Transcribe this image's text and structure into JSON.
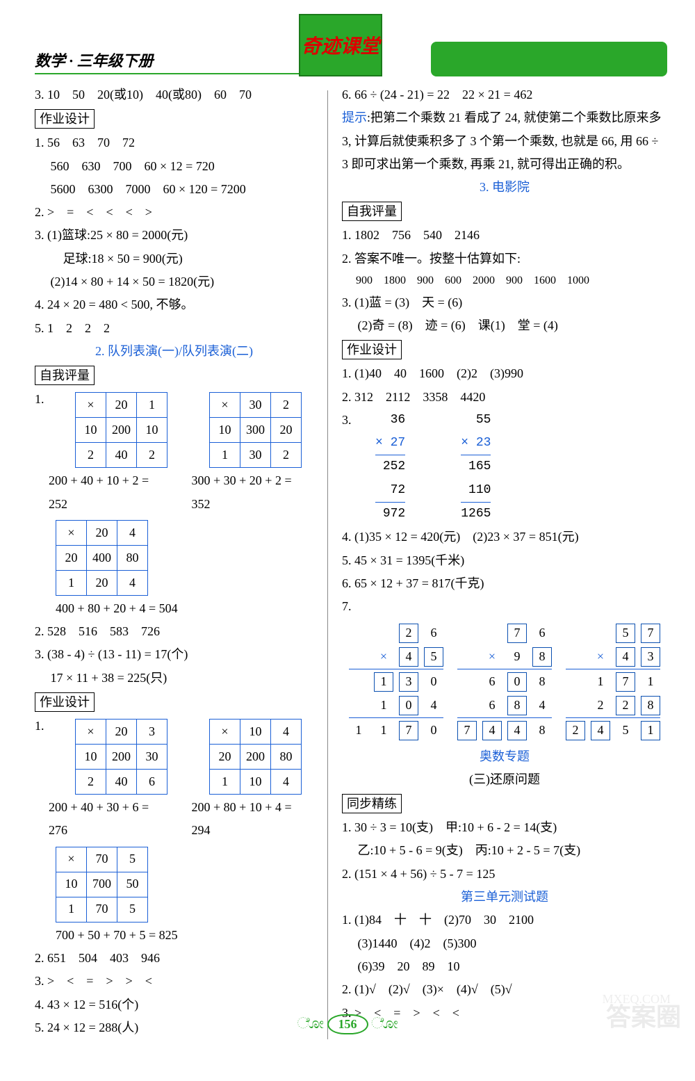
{
  "header": {
    "left": "数学 · 三年级下册",
    "center": "奇迹课堂"
  },
  "left": {
    "l3": "3. 10　50　20(或10)　40(或80)　60　70",
    "box1": "作业设计",
    "hw1a": "1. 56　63　70　72",
    "hw1b": "　 560　630　700　60 × 12 = 720",
    "hw1c": "　 5600　6300　7000　60 × 120 = 7200",
    "hw2": "2. >　=　<　<　<　>",
    "hw3a": "3. (1)篮球:25 × 80 = 2000(元)",
    "hw3b": "　　 足球:18 × 50 = 900(元)",
    "hw3c": "　 (2)14 × 80 + 14 × 50 = 1820(元)",
    "hw4": "4. 24 × 20 = 480 < 500, 不够。",
    "hw5": "5. 1　2　2　2",
    "sec2": "2. 队列表演(一)/队列表演(二)",
    "box2": "自我评量",
    "q1": "1.",
    "t1": [
      [
        "×",
        "20",
        "1"
      ],
      [
        "10",
        "200",
        "10"
      ],
      [
        "2",
        "40",
        "2"
      ]
    ],
    "t2": [
      [
        "×",
        "30",
        "2"
      ],
      [
        "10",
        "300",
        "20"
      ],
      [
        "1",
        "30",
        "2"
      ]
    ],
    "t1eq": "200 + 40 + 10 + 2 = 252",
    "t2eq": "300 + 30 + 20 + 2 = 352",
    "t3": [
      [
        "×",
        "20",
        "4"
      ],
      [
        "20",
        "400",
        "80"
      ],
      [
        "1",
        "20",
        "4"
      ]
    ],
    "t3eq": "400 + 80 + 20 + 4 = 504",
    "q2": "2. 528　516　583　726",
    "q3a": "3. (38 - 4) ÷ (13 - 11) = 17(个)",
    "q3b": "　 17 × 11 + 38 = 225(只)",
    "box3": "作业设计",
    "p1": "1.",
    "t4": [
      [
        "×",
        "20",
        "3"
      ],
      [
        "10",
        "200",
        "30"
      ],
      [
        "2",
        "40",
        "6"
      ]
    ],
    "t5": [
      [
        "×",
        "10",
        "4"
      ],
      [
        "20",
        "200",
        "80"
      ],
      [
        "1",
        "10",
        "4"
      ]
    ],
    "t4eq": "200 + 40 + 30 + 6 = 276",
    "t5eq": "200 + 80 + 10 + 4 = 294",
    "t6": [
      [
        "×",
        "70",
        "5"
      ],
      [
        "10",
        "700",
        "50"
      ],
      [
        "1",
        "70",
        "5"
      ]
    ],
    "t6eq": "700 + 50 + 70 + 5 = 825",
    "p2": "2. 651　504　403　946",
    "p3": "3. >　<　=　>　>　<",
    "p4": "4. 43 × 12 = 516(个)",
    "p5": "5. 24 × 12 = 288(人)"
  },
  "right": {
    "l6": "6. 66 ÷ (24 - 21) = 22　22 × 21 = 462",
    "hint_label": "提示",
    "hint": ":把第二个乘数 21 看成了 24, 就使第二个乘数比原来多 3, 计算后就使乘积多了 3 个第一个乘数, 也就是 66, 用 66 ÷ 3 即可求出第一个乘数, 再乘 21, 就可得出正确的积。",
    "sec3": "3. 电影院",
    "box4": "自我评量",
    "r1": "1. 1802　756　540　2146",
    "r2a": "2. 答案不唯一。按整十估算如下:",
    "r2b": "　 900　1800　900　600　2000　900　1600　1000",
    "r3a": "3. (1)蓝 = (3)　天 = (6)",
    "r3b": "　 (2)奇 = (8)　迹 = (6)　课(1)　堂 = (4)",
    "box5": "作业设计",
    "s1": "1. (1)40　40　1600　(2)2　(3)990",
    "s2": "2. 312　2112　3358　4420",
    "s3": "3.",
    "mult1": {
      "a": "36",
      "b": "× 27",
      "p1": "252",
      "p2": "72 ",
      "r": "972"
    },
    "mult2": {
      "a": "55",
      "b": "× 23",
      "p1": "165",
      "p2": "110 ",
      "r": "1265"
    },
    "s4": "4. (1)35 × 12 = 420(元)　(2)23 × 37 = 851(元)",
    "s5": "5. 45 × 31 = 1395(千米)",
    "s6": "6. 65 × 12 + 37 = 817(千克)",
    "s7": "7.",
    "puzzles": [
      {
        "rows": [
          [
            "",
            "2b",
            "6"
          ],
          [
            "×",
            "4b",
            "5b"
          ],
          [
            "1b",
            "3b",
            "0"
          ],
          [
            "1",
            "0b",
            "4"
          ],
          [
            "1",
            "1",
            "7b",
            "0"
          ]
        ]
      },
      {
        "rows": [
          [
            "",
            "7b",
            "6"
          ],
          [
            "×",
            "9",
            "8b"
          ],
          [
            "6",
            "0b",
            "8"
          ],
          [
            "6",
            "8b",
            "4"
          ],
          [
            "7b",
            "4b",
            "4b",
            "8"
          ]
        ]
      },
      {
        "rows": [
          [
            "",
            "5b",
            "7b"
          ],
          [
            "×",
            "4b",
            "3b"
          ],
          [
            "1",
            "7b",
            "1"
          ],
          [
            "2",
            "2b",
            "8b"
          ],
          [
            "2b",
            "4b",
            "5",
            "1b"
          ]
        ]
      }
    ],
    "olysec": "奥数专题",
    "olytitle": "(三)还原问题",
    "box6": "同步精练",
    "o1a": "1. 30 ÷ 3 = 10(支)　甲:10 + 6 - 2 = 14(支)",
    "o1b": "　 乙:10 + 5 - 6 = 9(支)　丙:10 + 2 - 5 = 7(支)",
    "o2": "2. (151 × 4 + 56) ÷ 5 - 7 = 125",
    "testsec": "第三单元测试题",
    "t1a": "1. (1)84　十　十　(2)70　30　2100",
    "t1b": "　 (3)1440　(4)2　(5)300",
    "t1c": "　 (6)39　20　89　10",
    "t2": "2. (1)√　(2)√　(3)×　(4)√　(5)√",
    "t3": "3. >　<　=　>　<　<"
  },
  "footer": {
    "page": "156"
  }
}
